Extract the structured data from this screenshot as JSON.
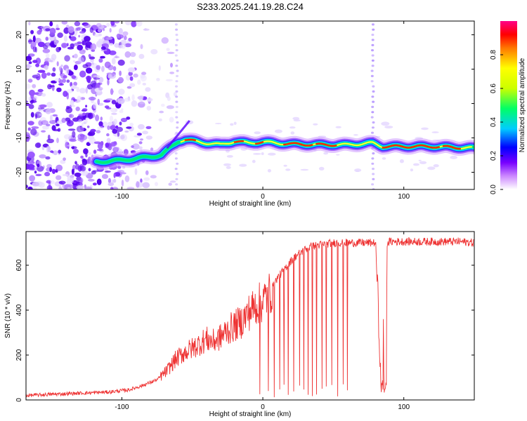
{
  "title": "S233.2025.241.19.28.C24",
  "chart_data": [
    {
      "type": "heatmap",
      "name": "spectrogram",
      "xlabel": "Height of straight line (km)",
      "ylabel": "Frequency (Hz)",
      "xlim": [
        -168,
        150
      ],
      "ylim": [
        -25,
        24
      ],
      "xticks": [
        -100,
        0,
        100
      ],
      "yticks": [
        -20,
        -10,
        0,
        10,
        20
      ],
      "colorbar": {
        "label": "Normalized spectral amplitude",
        "range": [
          0.0,
          1.0
        ],
        "ticks": [
          0.0,
          0.2,
          0.4,
          0.6,
          0.8
        ],
        "tick_labels": [
          "0.0",
          "0.2",
          "0.4",
          "0.6",
          "0.8"
        ]
      },
      "ridge": {
        "x": [
          -118,
          -100,
          -90,
          -80,
          -72,
          -66,
          -60,
          -55,
          -48,
          -40,
          -30,
          -20,
          -10,
          0,
          20,
          40,
          60,
          78,
          85,
          100,
          120,
          150
        ],
        "y": [
          -17,
          -16.5,
          -16,
          -15.5,
          -15,
          -13,
          -11,
          -10.5,
          -11,
          -11.5,
          -12,
          -11,
          -11.5,
          -11.2,
          -11.8,
          -12,
          -12,
          -11.5,
          -12.5,
          -12.5,
          -12.5,
          -13
        ]
      },
      "colors": [
        "#ffffff",
        "#cc66ff",
        "#6600ff",
        "#0000ff",
        "#00ccff",
        "#00ff66",
        "#ccff00",
        "#ffff00",
        "#ff8800",
        "#ff0000",
        "#ff0088"
      ]
    },
    {
      "type": "line",
      "name": "snr",
      "xlabel": "Height of straight line (km)",
      "ylabel": "SNR (10 * v/v)",
      "xlim": [
        -168,
        150
      ],
      "ylim": [
        0,
        750
      ],
      "xticks": [
        -100,
        0,
        100
      ],
      "yticks": [
        0,
        200,
        400,
        600
      ],
      "series": [
        {
          "name": "SNR",
          "color": "#ee3333",
          "x": [
            -168,
            -150,
            -130,
            -110,
            -95,
            -85,
            -75,
            -68,
            -62,
            -56,
            -50,
            -45,
            -40,
            -35,
            -30,
            -25,
            -20,
            -15,
            -10,
            -5,
            0,
            5,
            10,
            15,
            20,
            25,
            30,
            35,
            40,
            45,
            50,
            60,
            70,
            80,
            84,
            86,
            88,
            90,
            100,
            110,
            120,
            130,
            140,
            150
          ],
          "values": [
            20,
            25,
            30,
            35,
            45,
            65,
            90,
            130,
            180,
            210,
            230,
            250,
            270,
            260,
            280,
            310,
            330,
            350,
            390,
            420,
            440,
            480,
            540,
            580,
            620,
            650,
            670,
            685,
            690,
            695,
            700,
            700,
            700,
            700,
            40,
            40,
            700,
            705,
            705,
            705,
            705,
            705,
            705,
            700
          ]
        }
      ]
    }
  ]
}
